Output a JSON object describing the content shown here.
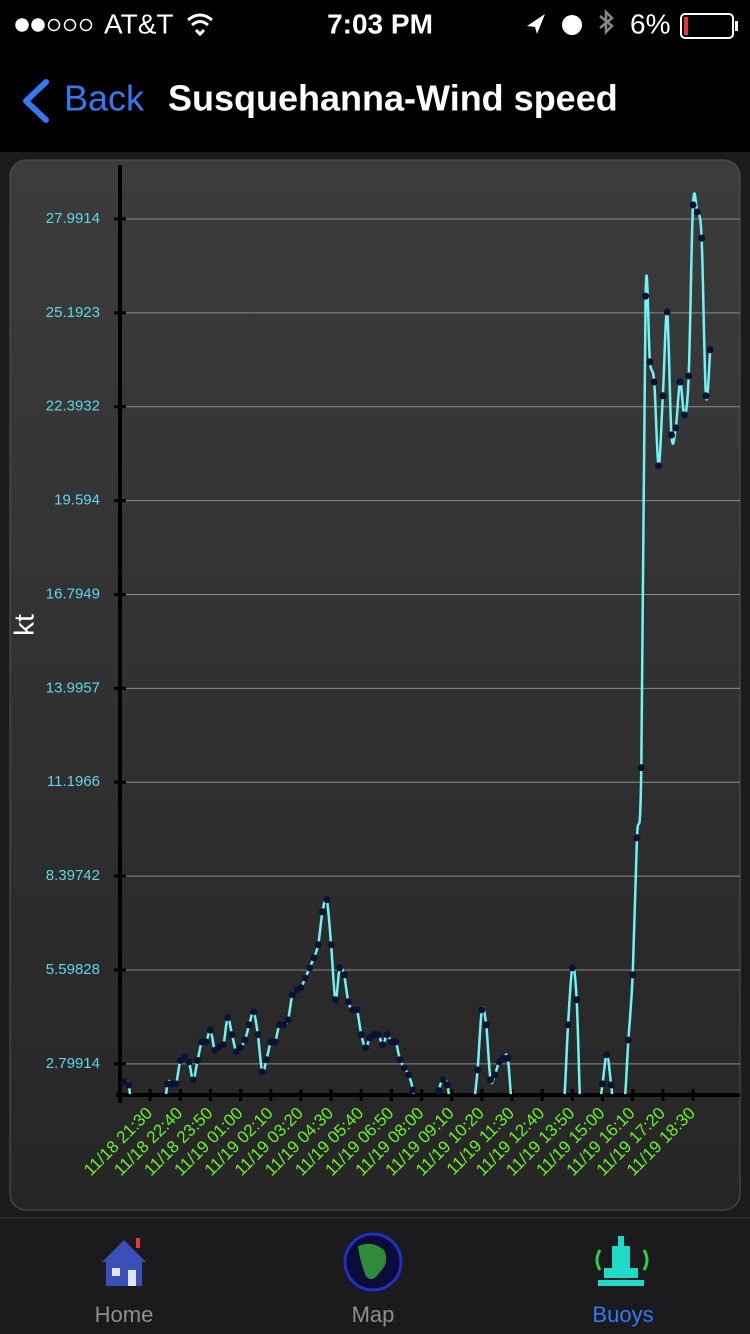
{
  "status_bar": {
    "carrier": "AT&T",
    "time": "7:03 PM",
    "battery": "6%"
  },
  "nav_bar": {
    "back": "Back",
    "title": "Susquehanna-Wind speed"
  },
  "chart_data": {
    "type": "line",
    "y_label": "kt",
    "line_color": "#6ff3f3",
    "marker_color": "#0b1233",
    "grid": true,
    "ylim": [
      1.87,
      29.6
    ],
    "yticks": [
      2.79914,
      5.59828,
      8.39742,
      11.1966,
      13.9957,
      16.7949,
      19.594,
      22.3932,
      25.1923,
      27.9914
    ],
    "categories": [
      null,
      null,
      null,
      null,
      null,
      null,
      null,
      "11/18 21:30",
      null,
      null,
      null,
      null,
      null,
      null,
      "11/18 22:40",
      null,
      null,
      null,
      null,
      null,
      null,
      "11/18 23:50",
      null,
      null,
      null,
      null,
      null,
      null,
      "11/19 01:00",
      null,
      null,
      null,
      null,
      null,
      null,
      "11/19 02:10",
      null,
      null,
      null,
      null,
      null,
      null,
      "11/19 03:20",
      null,
      null,
      null,
      null,
      null,
      null,
      "11/19 04:30",
      null,
      null,
      null,
      null,
      null,
      null,
      "11/19 05:40",
      null,
      null,
      null,
      null,
      null,
      null,
      "11/19 06:50",
      null,
      null,
      null,
      null,
      null,
      null,
      "11/19 08:00",
      null,
      null,
      null,
      null,
      null,
      null,
      "11/19 09:10",
      null,
      null,
      null,
      null,
      null,
      null,
      "11/19 10:20",
      null,
      null,
      null,
      null,
      null,
      null,
      "11/19 11:30",
      null,
      null,
      null,
      null,
      null,
      null,
      "11/19 12:40",
      null,
      null,
      null,
      null,
      null,
      null,
      "11/19 13:50",
      null,
      null,
      null,
      null,
      null,
      null,
      "11/19 15:00",
      null,
      null,
      null,
      null,
      null,
      null,
      "11/19 16:10",
      null,
      null,
      null,
      null,
      null,
      null,
      "11/19 17:20",
      null,
      null,
      null,
      null,
      null,
      null,
      "11/19 18:30",
      null,
      null,
      null,
      null
    ],
    "values": [
      2.17,
      2.26,
      2.17,
      1.2,
      1.0,
      1.0,
      1.0,
      1.0,
      1.0,
      1.0,
      1.0,
      2.2,
      2.2,
      2.2,
      2.9,
      3.0,
      2.86,
      2.32,
      2.9,
      3.45,
      3.45,
      3.8,
      3.2,
      3.3,
      3.37,
      4.17,
      3.67,
      3.16,
      3.28,
      3.51,
      3.96,
      4.35,
      3.67,
      2.56,
      2.92,
      3.45,
      3.45,
      3.96,
      3.96,
      4.11,
      4.86,
      5.0,
      5.07,
      5.36,
      5.66,
      5.96,
      6.35,
      7.33,
      7.69,
      6.35,
      4.71,
      5.66,
      5.45,
      4.65,
      4.41,
      4.41,
      3.67,
      3.28,
      3.57,
      3.67,
      3.67,
      3.37,
      3.67,
      3.45,
      3.45,
      2.92,
      2.68,
      2.47,
      2.02,
      1.0,
      1.0,
      1.0,
      1.0,
      1.0,
      2.0,
      2.32,
      2.17,
      1.2,
      1.0,
      1.0,
      1.0,
      1.0,
      1.5,
      2.62,
      4.41,
      3.96,
      2.32,
      2.47,
      2.86,
      2.97,
      2.97,
      1.5,
      1.0,
      1.0,
      1.0,
      1.0,
      1.0,
      1.0,
      1.0,
      1.0,
      1.0,
      1.0,
      1.5,
      1.5,
      3.96,
      5.66,
      4.71,
      1.0,
      1.0,
      1.0,
      1.0,
      1.2,
      2.2,
      3.07,
      2.17,
      1.0,
      1.0,
      1.4,
      3.51,
      5.45,
      9.54,
      11.63,
      25.69,
      23.73,
      23.13,
      20.63,
      22.72,
      25.22,
      21.55,
      21.76,
      23.13,
      22.15,
      23.31,
      28.41,
      28.2,
      27.42,
      22.72,
      24.09
    ]
  },
  "tab_bar": {
    "tabs": [
      "Home",
      "Map",
      "Buoys"
    ],
    "active": 2
  }
}
